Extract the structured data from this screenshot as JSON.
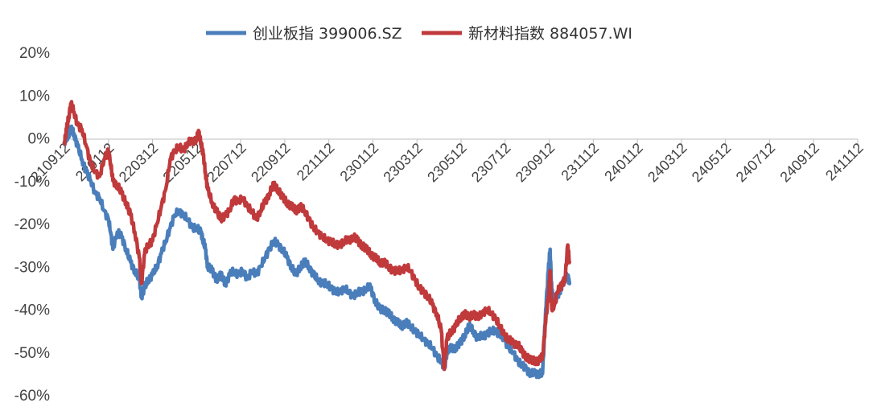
{
  "chart_data": {
    "type": "line",
    "title": "",
    "xlabel": "",
    "ylabel": "",
    "ylim": [
      -60,
      20
    ],
    "y_ticks": [
      "20%",
      "10%",
      "0%",
      "-10%",
      "-20%",
      "-30%",
      "-40%",
      "-50%",
      "-60%"
    ],
    "x_ticks": [
      "210912",
      "220112",
      "220312",
      "220512",
      "220712",
      "220912",
      "221112",
      "230112",
      "230312",
      "230512",
      "230712",
      "230912",
      "231112",
      "240112",
      "240312",
      "240512",
      "240712",
      "240912",
      "241112"
    ],
    "grid": false,
    "legend_position": "top-center",
    "series": [
      {
        "name": "创业板指 399006.SZ",
        "color": "#4a7ebb",
        "values": [
          [
            0,
            -1
          ],
          [
            0.05,
            0
          ],
          [
            0.1,
            1
          ],
          [
            0.15,
            2
          ],
          [
            0.22,
            1
          ],
          [
            0.3,
            -2
          ],
          [
            0.4,
            -5
          ],
          [
            0.5,
            -8
          ],
          [
            0.6,
            -10
          ],
          [
            0.7,
            -13
          ],
          [
            0.8,
            -14
          ],
          [
            0.9,
            -17
          ],
          [
            1.0,
            -19
          ],
          [
            1.05,
            -22
          ],
          [
            1.1,
            -26
          ],
          [
            1.2,
            -22
          ],
          [
            1.3,
            -23
          ],
          [
            1.4,
            -26
          ],
          [
            1.5,
            -29
          ],
          [
            1.6,
            -31
          ],
          [
            1.7,
            -33
          ],
          [
            1.75,
            -37
          ],
          [
            1.82,
            -35
          ],
          [
            1.9,
            -33
          ],
          [
            2.0,
            -32
          ],
          [
            2.1,
            -30
          ],
          [
            2.2,
            -27
          ],
          [
            2.3,
            -24
          ],
          [
            2.4,
            -21
          ],
          [
            2.5,
            -18
          ],
          [
            2.6,
            -17
          ],
          [
            2.7,
            -18
          ],
          [
            2.8,
            -19
          ],
          [
            2.9,
            -21
          ],
          [
            3.0,
            -21
          ],
          [
            3.1,
            -22
          ],
          [
            3.15,
            -24
          ],
          [
            3.2,
            -26
          ],
          [
            3.25,
            -30
          ],
          [
            3.35,
            -31
          ],
          [
            3.45,
            -33
          ],
          [
            3.55,
            -32
          ],
          [
            3.65,
            -34
          ],
          [
            3.75,
            -32
          ],
          [
            3.85,
            -31
          ],
          [
            3.95,
            -32
          ],
          [
            4.05,
            -31
          ],
          [
            4.15,
            -33
          ],
          [
            4.25,
            -31
          ],
          [
            4.35,
            -32
          ],
          [
            4.45,
            -30
          ],
          [
            4.55,
            -28
          ],
          [
            4.65,
            -26
          ],
          [
            4.75,
            -24
          ],
          [
            4.85,
            -25
          ],
          [
            4.95,
            -26
          ],
          [
            5.05,
            -28
          ],
          [
            5.15,
            -30
          ],
          [
            5.25,
            -32
          ],
          [
            5.35,
            -30
          ],
          [
            5.45,
            -29
          ],
          [
            5.55,
            -30
          ],
          [
            5.65,
            -32
          ],
          [
            5.75,
            -33
          ],
          [
            5.85,
            -34
          ],
          [
            5.95,
            -34
          ],
          [
            6.05,
            -35
          ],
          [
            6.15,
            -36
          ],
          [
            6.25,
            -36
          ],
          [
            6.35,
            -35
          ],
          [
            6.45,
            -36
          ],
          [
            6.55,
            -37
          ],
          [
            6.65,
            -36
          ],
          [
            6.75,
            -36
          ],
          [
            6.85,
            -35
          ],
          [
            6.95,
            -35
          ],
          [
            7.05,
            -38
          ],
          [
            7.15,
            -40
          ],
          [
            7.25,
            -40
          ],
          [
            7.35,
            -41
          ],
          [
            7.45,
            -42
          ],
          [
            7.55,
            -43
          ],
          [
            7.65,
            -44
          ],
          [
            7.75,
            -43
          ],
          [
            7.85,
            -44
          ],
          [
            7.95,
            -45
          ],
          [
            8.05,
            -46
          ],
          [
            8.15,
            -47
          ],
          [
            8.25,
            -48
          ],
          [
            8.35,
            -49
          ],
          [
            8.45,
            -51
          ],
          [
            8.55,
            -52
          ],
          [
            8.62,
            -54
          ],
          [
            8.68,
            -50
          ],
          [
            8.78,
            -49
          ],
          [
            8.88,
            -49
          ],
          [
            8.98,
            -48
          ],
          [
            9.08,
            -46
          ],
          [
            9.18,
            -44
          ],
          [
            9.28,
            -45
          ],
          [
            9.38,
            -47
          ],
          [
            9.48,
            -46
          ],
          [
            9.58,
            -46
          ],
          [
            9.68,
            -45
          ],
          [
            9.78,
            -45
          ],
          [
            9.88,
            -46
          ],
          [
            9.98,
            -47
          ],
          [
            10.08,
            -49
          ],
          [
            10.18,
            -50
          ],
          [
            10.28,
            -52
          ],
          [
            10.38,
            -53
          ],
          [
            10.48,
            -54
          ],
          [
            10.58,
            -55
          ],
          [
            10.68,
            -55
          ],
          [
            10.78,
            -55
          ],
          [
            10.85,
            -55
          ],
          [
            10.92,
            -40
          ],
          [
            10.98,
            -31
          ],
          [
            11.02,
            -26
          ],
          [
            11.06,
            -36
          ],
          [
            11.12,
            -38
          ],
          [
            11.18,
            -37
          ],
          [
            11.24,
            -36
          ],
          [
            11.3,
            -34
          ],
          [
            11.36,
            -33
          ],
          [
            11.42,
            -32
          ],
          [
            11.46,
            -34
          ]
        ]
      },
      {
        "name": "新材料指数 884057.WI",
        "color": "#c0393b",
        "values": [
          [
            0,
            -1
          ],
          [
            0.05,
            2
          ],
          [
            0.1,
            5
          ],
          [
            0.15,
            8
          ],
          [
            0.22,
            6
          ],
          [
            0.3,
            3
          ],
          [
            0.4,
            2
          ],
          [
            0.5,
            -2
          ],
          [
            0.6,
            -6
          ],
          [
            0.7,
            -8
          ],
          [
            0.8,
            -9
          ],
          [
            0.9,
            -5
          ],
          [
            1.0,
            -3
          ],
          [
            1.05,
            -6
          ],
          [
            1.1,
            -10
          ],
          [
            1.2,
            -11
          ],
          [
            1.3,
            -13
          ],
          [
            1.4,
            -15
          ],
          [
            1.5,
            -18
          ],
          [
            1.6,
            -22
          ],
          [
            1.7,
            -28
          ],
          [
            1.75,
            -34
          ],
          [
            1.82,
            -27
          ],
          [
            1.9,
            -25
          ],
          [
            2.0,
            -24
          ],
          [
            2.1,
            -20
          ],
          [
            2.2,
            -16
          ],
          [
            2.3,
            -12
          ],
          [
            2.4,
            -5
          ],
          [
            2.5,
            -3
          ],
          [
            2.6,
            -2
          ],
          [
            2.7,
            -3
          ],
          [
            2.8,
            -1
          ],
          [
            2.9,
            -1
          ],
          [
            3.0,
            0
          ],
          [
            3.05,
            1
          ],
          [
            3.1,
            -1
          ],
          [
            3.15,
            -4
          ],
          [
            3.2,
            -8
          ],
          [
            3.25,
            -12
          ],
          [
            3.35,
            -15
          ],
          [
            3.45,
            -17
          ],
          [
            3.55,
            -19
          ],
          [
            3.65,
            -18
          ],
          [
            3.75,
            -17
          ],
          [
            3.85,
            -14
          ],
          [
            3.95,
            -15
          ],
          [
            4.05,
            -14
          ],
          [
            4.15,
            -16
          ],
          [
            4.25,
            -17
          ],
          [
            4.35,
            -19
          ],
          [
            4.45,
            -17
          ],
          [
            4.55,
            -15
          ],
          [
            4.65,
            -13
          ],
          [
            4.75,
            -11
          ],
          [
            4.85,
            -12
          ],
          [
            4.95,
            -14
          ],
          [
            5.05,
            -15
          ],
          [
            5.15,
            -16
          ],
          [
            5.25,
            -17
          ],
          [
            5.35,
            -16
          ],
          [
            5.45,
            -17
          ],
          [
            5.55,
            -19
          ],
          [
            5.65,
            -21
          ],
          [
            5.75,
            -22
          ],
          [
            5.85,
            -23
          ],
          [
            5.95,
            -24
          ],
          [
            6.05,
            -24
          ],
          [
            6.15,
            -25
          ],
          [
            6.25,
            -25
          ],
          [
            6.35,
            -24
          ],
          [
            6.45,
            -24
          ],
          [
            6.55,
            -23
          ],
          [
            6.65,
            -24
          ],
          [
            6.75,
            -25
          ],
          [
            6.85,
            -26
          ],
          [
            6.95,
            -27
          ],
          [
            7.05,
            -28
          ],
          [
            7.15,
            -29
          ],
          [
            7.25,
            -29
          ],
          [
            7.35,
            -30
          ],
          [
            7.45,
            -31
          ],
          [
            7.55,
            -31
          ],
          [
            7.65,
            -31
          ],
          [
            7.75,
            -30
          ],
          [
            7.85,
            -31
          ],
          [
            7.95,
            -33
          ],
          [
            8.05,
            -35
          ],
          [
            8.15,
            -36
          ],
          [
            8.25,
            -37
          ],
          [
            8.35,
            -39
          ],
          [
            8.45,
            -41
          ],
          [
            8.55,
            -45
          ],
          [
            8.62,
            -54
          ],
          [
            8.68,
            -47
          ],
          [
            8.78,
            -45
          ],
          [
            8.88,
            -44
          ],
          [
            8.98,
            -42
          ],
          [
            9.08,
            -41
          ],
          [
            9.18,
            -42
          ],
          [
            9.28,
            -41
          ],
          [
            9.38,
            -42
          ],
          [
            9.48,
            -41
          ],
          [
            9.58,
            -40
          ],
          [
            9.68,
            -41
          ],
          [
            9.78,
            -42
          ],
          [
            9.88,
            -44
          ],
          [
            9.98,
            -46
          ],
          [
            10.08,
            -47
          ],
          [
            10.18,
            -48
          ],
          [
            10.28,
            -48
          ],
          [
            10.38,
            -50
          ],
          [
            10.48,
            -51
          ],
          [
            10.58,
            -52
          ],
          [
            10.68,
            -52
          ],
          [
            10.78,
            -52
          ],
          [
            10.85,
            -51
          ],
          [
            10.92,
            -43
          ],
          [
            10.98,
            -37
          ],
          [
            11.02,
            -31
          ],
          [
            11.06,
            -40
          ],
          [
            11.12,
            -39
          ],
          [
            11.18,
            -36
          ],
          [
            11.24,
            -35
          ],
          [
            11.3,
            -34
          ],
          [
            11.36,
            -33
          ],
          [
            11.42,
            -25
          ],
          [
            11.46,
            -29
          ]
        ]
      }
    ]
  }
}
